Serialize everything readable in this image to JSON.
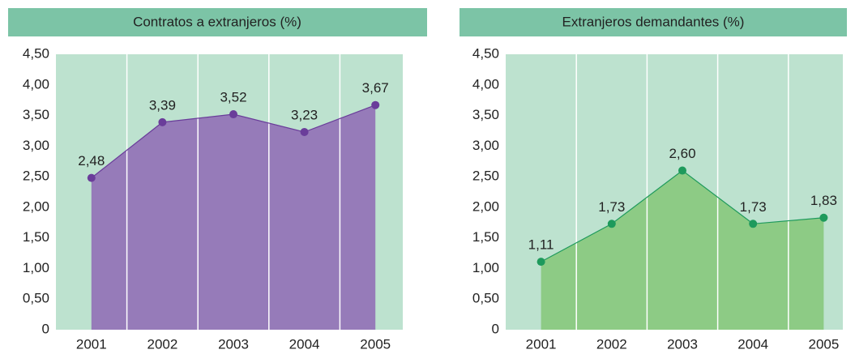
{
  "chart_data": [
    {
      "type": "area",
      "title": "Contratos a extranjeros (%)",
      "categories": [
        "2001",
        "2002",
        "2003",
        "2004",
        "2005"
      ],
      "values": [
        2.48,
        3.39,
        3.52,
        3.23,
        3.67
      ],
      "value_labels": [
        "2,48",
        "3,39",
        "3,52",
        "3,23",
        "3,67"
      ],
      "color": "#967bb9",
      "line_color": "#6a3d9a",
      "ylim": [
        0,
        4.5
      ],
      "yticks": [
        0,
        {
          "value": 0.5,
          "label": "0,50"
        },
        {
          "value": 1,
          "label": "1,00"
        },
        {
          "value": 1.5,
          "label": "1,50"
        },
        {
          "value": 2,
          "label": "2,00"
        },
        {
          "value": 2.5,
          "label": "2,50"
        },
        {
          "value": 3,
          "label": "3,00"
        },
        {
          "value": 3.5,
          "label": "3,50"
        },
        {
          "value": 4,
          "label": "4,00"
        },
        {
          "value": 4.5,
          "label": "4,50"
        }
      ]
    },
    {
      "type": "area",
      "title": "Extranjeros demandantes (%)",
      "categories": [
        "2001",
        "2002",
        "2003",
        "2004",
        "2005"
      ],
      "values": [
        1.11,
        1.73,
        2.6,
        1.73,
        1.83
      ],
      "value_labels": [
        "1,11",
        "1,73",
        "2,60",
        "1,73",
        "1,83"
      ],
      "color": "#8dcb85",
      "line_color": "#1e9a5c",
      "ylim": [
        0,
        4.5
      ],
      "yticks": [
        0,
        {
          "value": 0.5,
          "label": "0,50"
        },
        {
          "value": 1,
          "label": "1,00"
        },
        {
          "value": 1.5,
          "label": "1,50"
        },
        {
          "value": 2,
          "label": "2,00"
        },
        {
          "value": 2.5,
          "label": "2,50"
        },
        {
          "value": 3,
          "label": "3,00"
        },
        {
          "value": 3.5,
          "label": "3,50"
        },
        {
          "value": 4,
          "label": "4,00"
        },
        {
          "value": 4.5,
          "label": "4,50"
        }
      ]
    }
  ]
}
